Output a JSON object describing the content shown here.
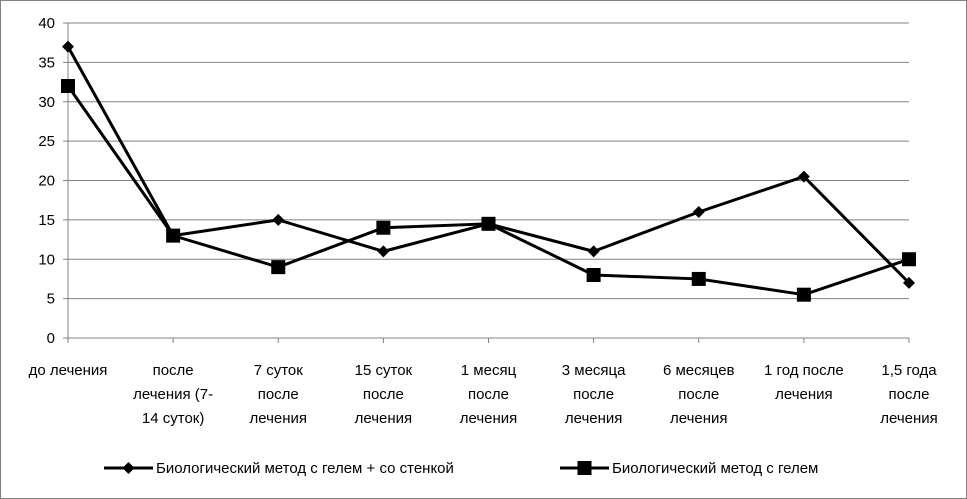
{
  "chart_data": {
    "type": "line",
    "title": "",
    "xlabel": "",
    "ylabel": "",
    "ylim": [
      0,
      40
    ],
    "y_ticks": [
      0,
      5,
      10,
      15,
      20,
      25,
      30,
      35,
      40
    ],
    "grid": "horizontal",
    "legend_position": "bottom",
    "categories": [
      [
        "до лечения"
      ],
      [
        "после",
        "лечения (7-",
        "14 суток)"
      ],
      [
        "7 суток",
        "после",
        "лечения"
      ],
      [
        "15 суток",
        "после",
        "лечения"
      ],
      [
        "1 месяц",
        "после",
        "лечения"
      ],
      [
        "3 месяца",
        "после",
        "лечения"
      ],
      [
        "6 месяцев",
        "после",
        "лечения"
      ],
      [
        "1 год после",
        "лечения"
      ],
      [
        "1,5 года",
        "после",
        "лечения"
      ]
    ],
    "series": [
      {
        "name": "Биологический метод с гелем + со стенкой",
        "marker": "diamond",
        "color": "#000000",
        "values": [
          37,
          13,
          15,
          11,
          14.5,
          11,
          16,
          20.5,
          7
        ]
      },
      {
        "name": "Биологический метод с гелем",
        "marker": "square",
        "color": "#000000",
        "values": [
          32,
          13,
          9,
          14,
          14.5,
          8,
          7.5,
          5.5,
          10
        ]
      }
    ]
  }
}
